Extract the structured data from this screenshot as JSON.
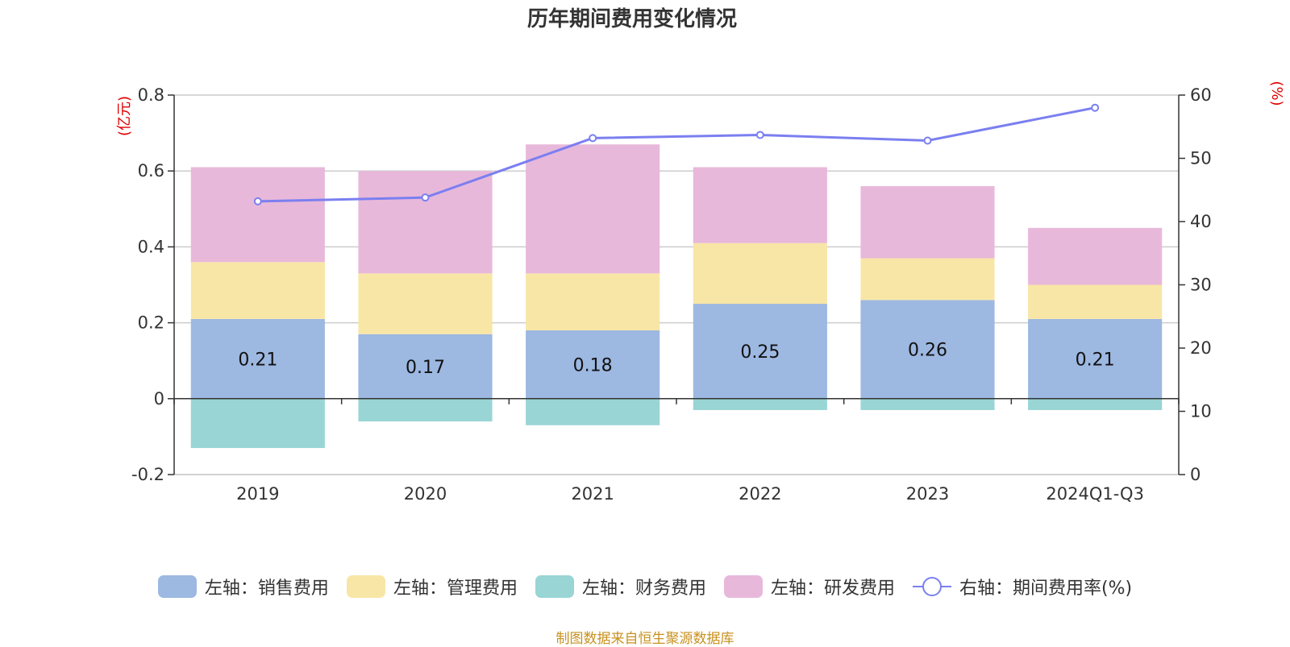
{
  "chart_data": {
    "type": "bar",
    "stacked": true,
    "title": "历年期间费用变化情况",
    "categories": [
      "2019",
      "2020",
      "2021",
      "2022",
      "2023",
      "2024Q1-Q3"
    ],
    "left_axis": {
      "unit": "(亿元)",
      "min": -0.2,
      "max": 0.8,
      "ticks": [
        -0.2,
        0,
        0.2,
        0.4,
        0.6,
        0.8
      ],
      "tick_labels": [
        "-0.2",
        "0",
        "0.2",
        "0.4",
        "0.6",
        "0.8"
      ]
    },
    "right_axis": {
      "unit": "(%)",
      "min": 0,
      "max": 60,
      "ticks": [
        0,
        10,
        20,
        30,
        40,
        50,
        60
      ],
      "tick_labels": [
        "0",
        "10",
        "20",
        "30",
        "40",
        "50",
        "60"
      ]
    },
    "series": [
      {
        "name": "左轴：销售费用",
        "color": "#9db8e1",
        "values": [
          0.21,
          0.17,
          0.18,
          0.25,
          0.26,
          0.21
        ],
        "labels": [
          "0.21",
          "0.17",
          "0.18",
          "0.25",
          "0.26",
          "0.21"
        ]
      },
      {
        "name": "左轴：管理费用",
        "color": "#f8e6a6",
        "values": [
          0.15,
          0.16,
          0.15,
          0.16,
          0.11,
          0.09
        ]
      },
      {
        "name": "左轴：财务费用",
        "color": "#99d5d5",
        "values": [
          -0.13,
          -0.06,
          -0.07,
          -0.03,
          -0.03,
          -0.03
        ]
      },
      {
        "name": "左轴：研发费用",
        "color": "#e8b8da",
        "values": [
          0.25,
          0.27,
          0.34,
          0.2,
          0.19,
          0.15
        ]
      }
    ],
    "line_series": {
      "name": "右轴：期间费用率(%)",
      "color": "#7b7ff0",
      "values": [
        43.2,
        43.8,
        53.2,
        53.7,
        52.8,
        58.0
      ]
    },
    "legend_position": "bottom",
    "grid": true
  },
  "source": "制图数据来自恒生聚源数据库"
}
